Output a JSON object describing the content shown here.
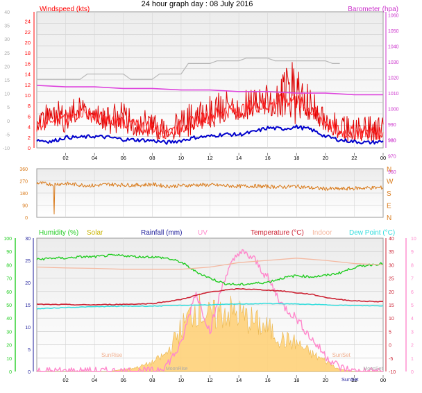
{
  "title": "24 hour graph day : 08 July 2016",
  "time_ticks": [
    "02",
    "04",
    "06",
    "08",
    "10",
    "12",
    "14",
    "16",
    "18",
    "20",
    "22",
    "00"
  ],
  "colors": {
    "windspeed": "#dd0000",
    "windspeed_axis": "#ff0000",
    "gust": "#dd0000",
    "wind_avg": "#0000cc",
    "barometer": "#dd44dd",
    "barometer_axis": "#cc33cc",
    "baro_grey": "#b8b8b8",
    "wind_dir": "#d97a1a",
    "humidity": "#22cc22",
    "solar": "#c8b400",
    "solar_fill": "#ffd27a",
    "rainfall": "#1a1a99",
    "uv": "#ff88cc",
    "temperature": "#cc2233",
    "indoor": "#f4b8a0",
    "dewpoint": "#33dddd",
    "sun_label": "#f0b090",
    "moon_label": "#aaaaaa"
  },
  "chart_data": [
    {
      "type": "line",
      "panel": "wind_baro",
      "left_axis": {
        "title": "Windspeed (kts)",
        "ticks": [
          0,
          2,
          4,
          6,
          8,
          10,
          12,
          14,
          16,
          18,
          20,
          22,
          24
        ],
        "ylim": [
          0,
          25
        ]
      },
      "outer_axis": {
        "ticks": [
          -10,
          -5,
          0,
          5,
          10,
          15,
          20,
          25,
          30,
          35,
          40
        ]
      },
      "right_axis": {
        "title": "Barometer (hpa)",
        "ticks": [
          980,
          990,
          1000,
          1010,
          1020,
          1030,
          1040,
          1050,
          1060
        ]
      },
      "wind_right_ticks": [
        960,
        970,
        980
      ],
      "grid": true,
      "series": [
        {
          "role": "barometer",
          "x": [
            0,
            2,
            4,
            6,
            8,
            10,
            12,
            14,
            16,
            18,
            20,
            22,
            24
          ],
          "y": [
            1015,
            1014,
            1014,
            1013,
            1013,
            1012,
            1012,
            1011,
            1011,
            1010,
            1010,
            1009,
            1009
          ]
        },
        {
          "role": "grey",
          "x": [
            0,
            3,
            3.5,
            6,
            6.5,
            8,
            8.5,
            10,
            10.5,
            12,
            12.5,
            14,
            14.5,
            16,
            16.5,
            18,
            18.5,
            20,
            20.5,
            21
          ],
          "y": [
            13,
            13,
            14,
            14,
            13,
            13,
            14,
            14,
            16,
            16,
            16.5,
            16.5,
            17,
            17,
            16.5,
            16.5,
            16.5,
            16.5,
            16,
            16
          ]
        },
        {
          "role": "wind_avg",
          "x": [
            0,
            1,
            2,
            3,
            4,
            5,
            6,
            7,
            8,
            9,
            10,
            11,
            12,
            13,
            14,
            15,
            16,
            17,
            18,
            19,
            20,
            21,
            22,
            23,
            24
          ],
          "y": [
            1.5,
            1.2,
            2,
            2,
            2.2,
            2,
            1.6,
            1.5,
            1.4,
            1,
            1.4,
            2,
            2.2,
            2.6,
            2.5,
            3,
            3.8,
            3.6,
            4,
            3.5,
            2.2,
            1.5,
            1.2,
            1,
            1.2
          ]
        },
        {
          "role": "windspeed",
          "x": [
            0,
            1,
            2,
            3,
            4,
            5,
            6,
            7,
            8,
            9,
            10,
            11,
            12,
            13,
            14,
            15,
            16,
            17,
            18,
            19,
            20,
            21,
            22,
            23,
            24
          ],
          "y": [
            4,
            6,
            5,
            7,
            6,
            5,
            5,
            4,
            4,
            3,
            4,
            5,
            6,
            7,
            7,
            8,
            8,
            9,
            9,
            7,
            5,
            3,
            3,
            3,
            3
          ]
        },
        {
          "role": "gust",
          "x": [
            0,
            1,
            2,
            3,
            4,
            5,
            6,
            7,
            8,
            9,
            10,
            11,
            12,
            13,
            14,
            15,
            16,
            17,
            18,
            19,
            20,
            21,
            22,
            23,
            24
          ],
          "y": [
            7,
            9,
            9,
            10,
            8,
            9,
            9,
            7,
            8,
            6,
            8,
            9,
            10,
            11,
            10,
            12,
            12,
            15,
            17,
            11,
            8,
            6,
            6,
            6,
            6
          ]
        }
      ]
    },
    {
      "type": "line",
      "panel": "wind_direction",
      "left_axis": {
        "ticks": [
          0,
          90,
          180,
          270,
          360
        ],
        "ylim": [
          0,
          360
        ]
      },
      "right_labels": [
        "N",
        "W",
        "S",
        "E",
        "N"
      ],
      "series": [
        {
          "role": "wind_dir",
          "x": [
            0,
            1,
            2,
            3,
            4,
            5,
            6,
            7,
            8,
            9,
            10,
            11,
            12,
            13,
            14,
            15,
            16,
            17,
            18,
            19,
            20,
            21,
            22,
            23,
            24
          ],
          "y": [
            255,
            245,
            250,
            240,
            235,
            245,
            240,
            238,
            245,
            230,
            235,
            240,
            240,
            235,
            230,
            232,
            228,
            225,
            230,
            218,
            212,
            210,
            215,
            218,
            220
          ]
        }
      ]
    },
    {
      "type": "line",
      "panel": "temp_humidity",
      "left_outer_axis": {
        "ticks": [
          0,
          10,
          20,
          30,
          40,
          50,
          60,
          70,
          80,
          90,
          100
        ]
      },
      "left_axis": {
        "ticks": [
          0,
          5,
          10,
          15,
          20,
          25,
          30
        ]
      },
      "right_axis": {
        "ticks": [
          -10,
          -5,
          0,
          5,
          10,
          15,
          20,
          25,
          30,
          35,
          40
        ]
      },
      "uv_axis": {
        "ticks": [
          0,
          1,
          2,
          3,
          4,
          5,
          6,
          7,
          8,
          9,
          10
        ]
      },
      "legend": [
        "Humidity (%)",
        "Solar",
        "Rainfall (mm)",
        "UV",
        "Temperature (°C)",
        "Indoor",
        "Dew Point (°C)"
      ],
      "annotations": [
        "SunRise",
        "SunSet",
        "MoonRise",
        "MoonSet",
        "SunSet"
      ],
      "series": [
        {
          "role": "humidity",
          "x": [
            0,
            1,
            2,
            3,
            4,
            5,
            6,
            7,
            8,
            9,
            10,
            11,
            12,
            13,
            14,
            15,
            16,
            17,
            18,
            19,
            20,
            21,
            22,
            23,
            24
          ],
          "y": [
            84,
            85,
            85,
            86,
            86,
            87,
            87,
            86,
            86,
            85,
            82,
            75,
            70,
            66,
            65,
            66,
            67,
            70,
            72,
            71,
            72,
            74,
            78,
            80,
            81
          ]
        },
        {
          "role": "indoor",
          "x": [
            0,
            2,
            4,
            6,
            8,
            10,
            12,
            14,
            16,
            18,
            20,
            22,
            24
          ],
          "y": [
            23.5,
            23.3,
            23.2,
            23.0,
            23.0,
            23.0,
            23.5,
            24.5,
            25.0,
            25.5,
            25.0,
            24.3,
            24.0
          ]
        },
        {
          "role": "temperature",
          "x": [
            0,
            1,
            2,
            3,
            4,
            5,
            6,
            7,
            8,
            9,
            10,
            11,
            12,
            13,
            14,
            15,
            16,
            17,
            18,
            19,
            20,
            21,
            22,
            23,
            24
          ],
          "y": [
            15.2,
            15.1,
            15.1,
            15.0,
            15.0,
            15.1,
            15.2,
            15.3,
            15.5,
            16.2,
            17,
            18.5,
            19.8,
            20.5,
            21,
            20.8,
            20.5,
            20.2,
            19.5,
            19,
            17.8,
            17,
            16.5,
            16.3,
            16.2
          ]
        },
        {
          "role": "dewpoint",
          "x": [
            0,
            2,
            4,
            6,
            8,
            10,
            12,
            14,
            16,
            18,
            20,
            22,
            24
          ],
          "y": [
            13.5,
            14,
            14.3,
            14.5,
            14.5,
            14.8,
            15,
            15.3,
            15.5,
            15.3,
            15,
            14.7,
            14.6
          ]
        },
        {
          "role": "solar",
          "x": [
            0,
            5,
            6,
            7,
            8,
            9,
            10,
            11,
            12,
            13,
            14,
            15,
            16,
            17,
            18,
            19,
            20,
            21,
            22,
            24
          ],
          "y": [
            0,
            0,
            0.5,
            1.2,
            2.5,
            5,
            12,
            18,
            15,
            17,
            16,
            14,
            12,
            9,
            8,
            5,
            3,
            0.5,
            0,
            0
          ]
        },
        {
          "role": "uv",
          "x": [
            0,
            8,
            9,
            10,
            11,
            12,
            13,
            14,
            15,
            16,
            17,
            18,
            19,
            20,
            21,
            22,
            24
          ],
          "y": [
            0,
            0,
            0.5,
            2,
            6,
            3,
            7,
            9,
            8.5,
            7,
            5,
            4,
            2.5,
            1.2,
            0.3,
            0,
            0
          ]
        }
      ]
    }
  ]
}
